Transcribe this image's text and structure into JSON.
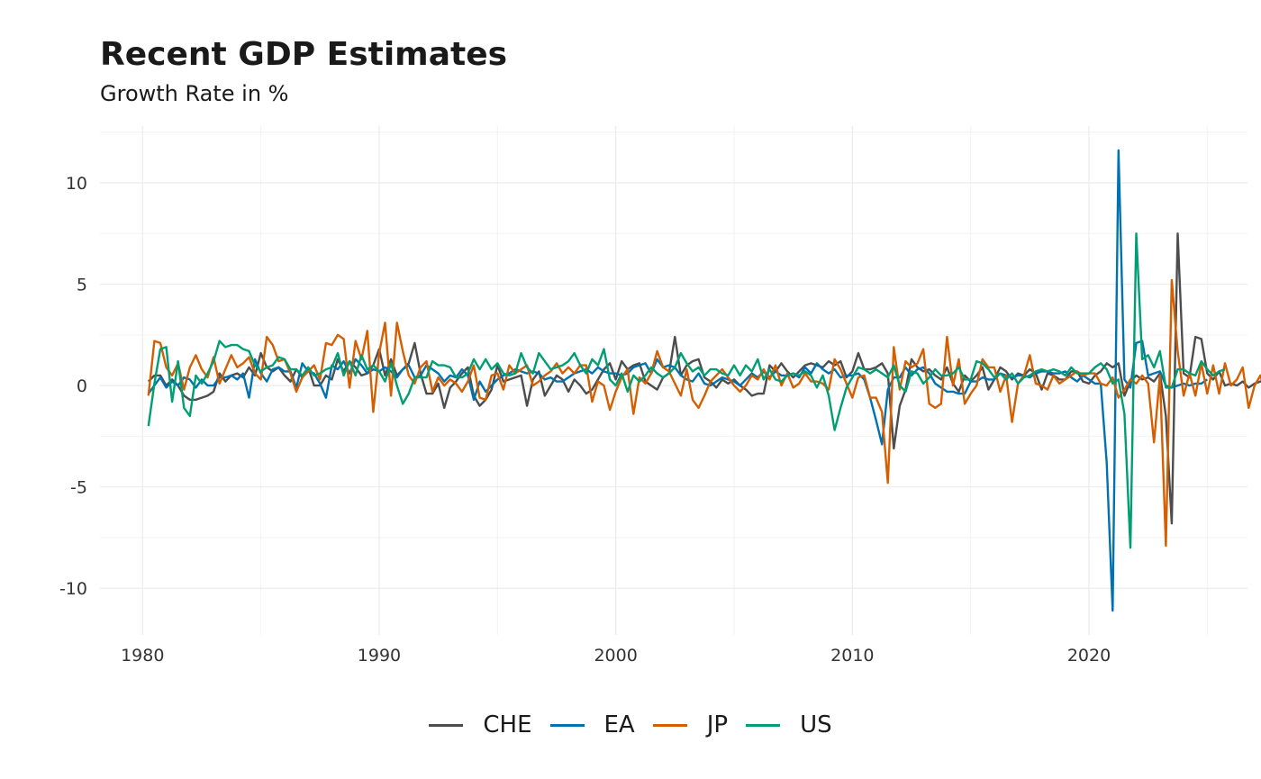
{
  "chart_data": {
    "type": "line",
    "title": "Recent GDP Estimates",
    "subtitle": "Growth Rate in %",
    "xlabel": "",
    "ylabel": "",
    "xlim": [
      1978.2,
      2026.7
    ],
    "ylim": [
      -12.3,
      12.8
    ],
    "x_ticks": [
      1980,
      1990,
      2000,
      2010,
      2020
    ],
    "x_tick_labels": [
      "1980",
      "1990",
      "2000",
      "2010",
      "2020"
    ],
    "y_ticks": [
      -10,
      -5,
      0,
      5,
      10
    ],
    "y_tick_labels": [
      "-10",
      "-5",
      "0",
      "5",
      "10"
    ],
    "grid": true,
    "legend_position": "bottom",
    "x_start": 1980.25,
    "x_step": 0.25,
    "series": [
      {
        "name": "CHE",
        "color": "#4d4d4d",
        "values": [
          0.2,
          0.5,
          0.5,
          0.0,
          0.3,
          0.0,
          -0.5,
          -0.7,
          -0.7,
          -0.6,
          -0.5,
          -0.3,
          0.6,
          0.2,
          0.5,
          0.6,
          0.4,
          0.9,
          0.5,
          1.6,
          0.9,
          0.7,
          0.9,
          0.5,
          0.2,
          0.8,
          0.4,
          0.9,
          0.0,
          0.0,
          0.5,
          0.3,
          1.3,
          0.7,
          1.2,
          0.9,
          0.5,
          0.6,
          1.0,
          1.8,
          0.5,
          1.3,
          0.5,
          0.8,
          1.1,
          2.1,
          0.6,
          -0.4,
          -0.4,
          0.1,
          -1.1,
          -0.1,
          0.2,
          0.6,
          0.9,
          -0.5,
          -1.0,
          -0.7,
          -0.2,
          1.0,
          0.2,
          0.3,
          0.4,
          0.5,
          -1.0,
          0.3,
          0.7,
          -0.5,
          0.0,
          0.5,
          0.3,
          -0.3,
          0.3,
          0.0,
          -0.4,
          -0.2,
          0.3,
          0.8,
          1.1,
          0.3,
          1.2,
          0.8,
          1.0,
          1.1,
          0.2,
          0.0,
          -0.2,
          0.4,
          0.6,
          2.4,
          0.5,
          1.0,
          1.2,
          1.3,
          0.4,
          0.2,
          -0.1,
          0.3,
          0.1,
          0.3,
          0.0,
          -0.2,
          -0.5,
          -0.4,
          -0.4,
          1.0,
          0.7,
          1.1,
          0.7,
          0.4,
          0.7,
          1.0,
          1.1,
          1.0,
          0.9,
          1.2,
          1.0,
          1.2,
          0.4,
          0.7,
          1.6,
          0.8,
          0.8,
          0.9,
          1.1,
          0.6,
          -3.1,
          -1.0,
          -0.2,
          1.3,
          0.9,
          0.7,
          0.8,
          0.5,
          0.3,
          0.9,
          0.1,
          -0.3,
          0.5,
          0.2,
          0.5,
          0.9,
          -0.2,
          0.3,
          0.9,
          0.7,
          0.3,
          0.6,
          0.5,
          0.8,
          0.6,
          -0.2,
          0.6,
          0.5,
          0.3,
          0.3,
          0.7,
          0.7,
          0.2,
          0.1,
          0.5,
          0.7,
          1.1,
          0.9,
          1.1,
          -0.5,
          0.2,
          0.5,
          0.3,
          0.4,
          0.2,
          0.6,
          -1.5,
          -6.8,
          7.5,
          0.6,
          0.4,
          2.4,
          2.3,
          0.6,
          0.3,
          0.7,
          0.0,
          0.1,
          0.0,
          0.2,
          -0.1,
          0.1,
          0.2,
          0.3,
          0.5
        ]
      },
      {
        "name": "EA",
        "color": "#0072b2",
        "values": [
          -0.4,
          0.0,
          0.4,
          -0.1,
          0.2,
          0.0,
          0.4,
          0.3,
          -0.1,
          0.3,
          0.0,
          0.0,
          0.4,
          0.4,
          0.5,
          0.3,
          0.6,
          -0.6,
          1.3,
          0.6,
          0.2,
          0.8,
          0.9,
          0.7,
          0.7,
          -0.1,
          1.1,
          0.7,
          0.6,
          0.1,
          -0.6,
          1.0,
          0.8,
          1.2,
          0.6,
          1.3,
          1.0,
          0.6,
          0.8,
          0.7,
          0.9,
          0.7,
          0.4,
          0.8,
          1.0,
          0.4,
          0.5,
          1.0,
          0.8,
          0.6,
          0.2,
          0.5,
          0.4,
          0.8,
          0.5,
          -0.7,
          0.2,
          -0.3,
          0.0,
          0.3,
          0.5,
          0.6,
          0.8,
          0.7,
          0.6,
          0.7,
          0.6,
          0.3,
          0.4,
          0.2,
          0.2,
          0.4,
          0.6,
          0.7,
          0.8,
          0.6,
          0.9,
          0.7,
          0.6,
          0.6,
          0.5,
          0.6,
          0.9,
          1.0,
          1.1,
          0.6,
          1.3,
          0.9,
          1.0,
          0.9,
          0.5,
          0.3,
          0.2,
          0.6,
          0.1,
          0.0,
          0.2,
          0.4,
          0.3,
          0.2,
          0.0,
          0.3,
          0.6,
          0.4,
          0.7,
          0.4,
          0.7,
          0.5,
          0.5,
          0.6,
          0.4,
          0.9,
          0.6,
          1.1,
          0.8,
          0.6,
          0.8,
          0.4,
          0.5,
          0.5,
          0.6,
          0.3,
          -0.6,
          -1.7,
          -2.9,
          -0.2,
          0.4,
          0.4,
          0.9,
          0.5,
          0.8,
          0.9,
          0.6,
          0.1,
          -0.1,
          -0.3,
          -0.3,
          -0.4,
          -0.4,
          0.2,
          0.2,
          0.4,
          0.3,
          0.3,
          0.6,
          0.5,
          0.4,
          0.5,
          0.5,
          0.4,
          0.6,
          0.7,
          0.7,
          0.6,
          0.6,
          0.7,
          0.4,
          0.2,
          0.5,
          0.3,
          0.1,
          0.1,
          -3.8,
          -11.1,
          11.6,
          0.3,
          -0.1,
          2.1,
          2.2,
          0.5,
          0.6,
          0.7,
          0.0,
          -0.1,
          0.0,
          0.1,
          0.0,
          0.1,
          0.1,
          0.3
        ]
      },
      {
        "name": "JP",
        "color": "#d55e00",
        "values": [
          -0.5,
          2.2,
          2.1,
          0.9,
          0.5,
          1.1,
          -0.2,
          0.9,
          1.5,
          0.8,
          0.4,
          1.4,
          0.1,
          0.8,
          1.5,
          0.9,
          1.1,
          1.4,
          0.6,
          0.3,
          2.4,
          2.0,
          1.2,
          1.3,
          0.6,
          -0.3,
          0.4,
          0.7,
          1.0,
          0.3,
          2.1,
          2.0,
          2.5,
          2.3,
          -0.1,
          2.2,
          1.3,
          2.7,
          -1.3,
          1.6,
          3.1,
          -0.5,
          3.1,
          1.7,
          0.5,
          0.1,
          0.9,
          1.2,
          -0.3,
          0.4,
          0.0,
          0.3,
          0.1,
          -0.3,
          0.2,
          1.0,
          -0.6,
          -0.7,
          0.5,
          0.6,
          -0.2,
          1.0,
          0.6,
          0.8,
          1.0,
          0.0,
          0.2,
          0.5,
          0.7,
          1.1,
          0.6,
          0.9,
          0.6,
          1.0,
          1.0,
          -0.8,
          0.2,
          0.0,
          -1.2,
          -0.3,
          0.4,
          0.8,
          -1.4,
          0.4,
          0.1,
          0.6,
          1.7,
          0.9,
          0.7,
          0.1,
          -0.5,
          0.8,
          -0.7,
          -1.1,
          -0.5,
          0.2,
          0.5,
          0.8,
          0.4,
          0.0,
          -0.3,
          0.0,
          0.5,
          0.3,
          0.8,
          0.3,
          1.0,
          0.0,
          0.6,
          -0.1,
          0.1,
          0.6,
          0.2,
          0.2,
          0.1,
          -0.2,
          1.3,
          0.8,
          0.1,
          -0.6,
          0.4,
          0.5,
          -0.6,
          -0.6,
          -1.3,
          -4.8,
          1.9,
          -0.2,
          1.2,
          0.9,
          1.1,
          1.8,
          -0.9,
          -1.1,
          -0.9,
          2.4,
          0.0,
          1.3,
          -0.9,
          -0.4,
          0.0,
          1.3,
          0.9,
          0.9,
          -0.3,
          0.5,
          -1.8,
          0.1,
          0.5,
          1.5,
          0.1,
          0.0,
          -0.2,
          0.5,
          0.1,
          0.3,
          0.5,
          0.7,
          0.5,
          0.6,
          0.6,
          0.1,
          0.0,
          0.4,
          -0.6,
          -0.2,
          0.3,
          0.1,
          0.5,
          0.1,
          -2.8,
          0.5,
          -7.9,
          5.2,
          1.7,
          -0.5,
          0.6,
          -0.5,
          1.1,
          -0.4,
          1.0,
          -0.4,
          1.1,
          0.0,
          0.3,
          0.9,
          -1.1,
          0.0,
          0.5,
          -0.6,
          0.5
        ]
      },
      {
        "name": "US",
        "color": "#009e73",
        "values": [
          -2.0,
          0.1,
          1.8,
          1.9,
          -0.8,
          1.2,
          -1.1,
          -1.5,
          0.5,
          0.1,
          0.6,
          1.2,
          2.2,
          1.9,
          2.0,
          2.0,
          1.8,
          1.7,
          1.0,
          0.7,
          0.9,
          1.0,
          1.4,
          1.3,
          0.8,
          0.8,
          0.5,
          0.9,
          0.5,
          0.6,
          0.8,
          0.9,
          1.6,
          0.5,
          1.2,
          0.5,
          1.5,
          0.8,
          1.0,
          0.7,
          0.2,
          1.1,
          0.0,
          -0.9,
          -0.4,
          0.4,
          0.4,
          0.4,
          1.2,
          1.0,
          1.0,
          0.9,
          0.4,
          0.4,
          0.6,
          1.3,
          0.8,
          1.3,
          0.8,
          1.1,
          0.6,
          0.5,
          0.6,
          1.6,
          0.9,
          0.6,
          1.6,
          1.2,
          0.8,
          0.9,
          1.0,
          1.2,
          1.6,
          1.0,
          0.6,
          1.3,
          1.0,
          1.8,
          0.3,
          0.0,
          0.6,
          -0.3,
          0.5,
          0.2,
          0.5,
          0.9,
          0.6,
          0.4,
          0.6,
          0.9,
          1.6,
          1.1,
          0.7,
          0.9,
          0.5,
          0.8,
          0.8,
          0.6,
          0.5,
          1.0,
          0.5,
          1.0,
          0.7,
          1.3,
          0.3,
          0.8,
          0.3,
          0.2,
          0.5,
          0.6,
          0.5,
          0.7,
          0.5,
          -0.1,
          0.5,
          -0.5,
          -2.2,
          -1.1,
          -0.1,
          0.4,
          0.9,
          0.8,
          0.6,
          0.8,
          0.6,
          0.4,
          1.0,
          0.0,
          -0.3,
          0.7,
          0.6,
          0.1,
          0.4,
          0.8,
          0.5,
          0.5,
          0.6,
          0.9,
          0.3,
          0.3,
          1.2,
          1.1,
          0.8,
          0.4,
          0.6,
          0.3,
          0.6,
          0.1,
          0.4,
          0.5,
          0.7,
          0.8,
          0.7,
          0.8,
          0.7,
          0.5,
          0.9,
          0.6,
          0.6,
          0.6,
          0.9,
          1.1,
          0.8,
          0.1,
          0.3,
          -1.4,
          -8.0,
          7.5,
          1.3,
          1.5,
          0.9,
          1.7,
          -0.1,
          -0.1,
          0.8,
          0.8,
          0.6,
          0.5,
          1.2,
          0.8,
          0.5,
          0.7,
          0.8
        ]
      }
    ]
  }
}
